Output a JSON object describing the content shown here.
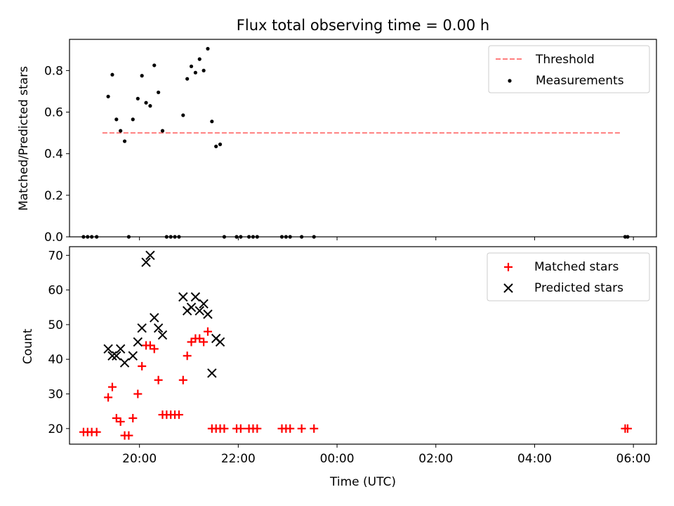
{
  "chart_data": [
    {
      "type": "scatter",
      "title": "Flux total observing time = 0.00 h",
      "xlabel": "",
      "ylabel": "Matched/Predicted stars",
      "x_unit": "time (UTC, hours; >24 means next day)",
      "xlim": [
        "18:35",
        "06:28"
      ],
      "ylim": [
        0,
        0.95
      ],
      "yticks": [
        "0.0",
        "0.2",
        "0.4",
        "0.6",
        "0.8"
      ],
      "legend_position": "top-right",
      "grid": false,
      "threshold": {
        "name": "Threshold",
        "value": 0.5,
        "x_range": [
          "19:15",
          "05:45"
        ],
        "color": "#ff7f7f"
      },
      "series": [
        {
          "name": "Measurements",
          "color": "#000000",
          "points": [
            [
              "18:52",
              0
            ],
            [
              "18:57",
              0
            ],
            [
              "19:02",
              0
            ],
            [
              "19:08",
              0
            ],
            [
              "19:22",
              0.675
            ],
            [
              "19:27",
              0.78
            ],
            [
              "19:32",
              0.565
            ],
            [
              "19:37",
              0.51
            ],
            [
              "19:42",
              0.46
            ],
            [
              "19:47",
              0
            ],
            [
              "19:52",
              0.565
            ],
            [
              "19:58",
              0.665
            ],
            [
              "20:03",
              0.775
            ],
            [
              "20:08",
              0.645
            ],
            [
              "20:13",
              0.63
            ],
            [
              "20:18",
              0.825
            ],
            [
              "20:23",
              0.695
            ],
            [
              "20:28",
              0.51
            ],
            [
              "20:33",
              0
            ],
            [
              "20:38",
              0
            ],
            [
              "20:43",
              0
            ],
            [
              "20:48",
              0
            ],
            [
              "20:53",
              0.585
            ],
            [
              "20:58",
              0.76
            ],
            [
              "21:03",
              0.82
            ],
            [
              "21:08",
              0.79
            ],
            [
              "21:13",
              0.855
            ],
            [
              "21:18",
              0.8
            ],
            [
              "21:23",
              0.905
            ],
            [
              "21:28",
              0.555
            ],
            [
              "21:33",
              0.435
            ],
            [
              "21:38",
              0.445
            ],
            [
              "21:43",
              0
            ],
            [
              "21:58",
              0
            ],
            [
              "22:03",
              0
            ],
            [
              "22:13",
              0
            ],
            [
              "22:18",
              0
            ],
            [
              "22:23",
              0
            ],
            [
              "22:53",
              0
            ],
            [
              "22:58",
              0
            ],
            [
              "23:03",
              0
            ],
            [
              "23:17",
              0
            ],
            [
              "23:32",
              0
            ],
            [
              "05:50",
              0
            ],
            [
              "05:53",
              0
            ]
          ]
        }
      ]
    },
    {
      "type": "scatter",
      "title": "",
      "xlabel": "Time (UTC)",
      "ylabel": "Count",
      "x_unit": "time (UTC, hours; >24 means next day)",
      "xlim": [
        "18:35",
        "06:28"
      ],
      "ylim": [
        15.5,
        72.5
      ],
      "yticks": [
        "20",
        "30",
        "40",
        "50",
        "60",
        "70"
      ],
      "xticks": [
        "20:00",
        "22:00",
        "00:00",
        "02:00",
        "04:00",
        "06:00"
      ],
      "legend_position": "top-right",
      "grid": false,
      "series": [
        {
          "name": "Matched stars",
          "color": "#ff0000",
          "marker": "+",
          "points": [
            [
              "18:52",
              19
            ],
            [
              "18:57",
              19
            ],
            [
              "19:02",
              19
            ],
            [
              "19:08",
              19
            ],
            [
              "19:22",
              29
            ],
            [
              "19:27",
              32
            ],
            [
              "19:32",
              23
            ],
            [
              "19:37",
              22
            ],
            [
              "19:42",
              18
            ],
            [
              "19:47",
              18
            ],
            [
              "19:52",
              23
            ],
            [
              "19:58",
              30
            ],
            [
              "20:03",
              38
            ],
            [
              "20:08",
              44
            ],
            [
              "20:13",
              44
            ],
            [
              "20:18",
              43
            ],
            [
              "20:23",
              34
            ],
            [
              "20:28",
              24
            ],
            [
              "20:33",
              24
            ],
            [
              "20:38",
              24
            ],
            [
              "20:43",
              24
            ],
            [
              "20:48",
              24
            ],
            [
              "20:53",
              34
            ],
            [
              "20:58",
              41
            ],
            [
              "21:03",
              45
            ],
            [
              "21:08",
              46
            ],
            [
              "21:13",
              46
            ],
            [
              "21:18",
              45
            ],
            [
              "21:23",
              48
            ],
            [
              "21:28",
              20
            ],
            [
              "21:33",
              20
            ],
            [
              "21:38",
              20
            ],
            [
              "21:43",
              20
            ],
            [
              "21:58",
              20
            ],
            [
              "22:03",
              20
            ],
            [
              "22:13",
              20
            ],
            [
              "22:18",
              20
            ],
            [
              "22:23",
              20
            ],
            [
              "22:53",
              20
            ],
            [
              "22:58",
              20
            ],
            [
              "23:03",
              20
            ],
            [
              "23:17",
              20
            ],
            [
              "23:32",
              20
            ],
            [
              "05:50",
              20
            ],
            [
              "05:53",
              20
            ]
          ]
        },
        {
          "name": "Predicted stars",
          "color": "#000000",
          "marker": "x",
          "points": [
            [
              "19:22",
              43
            ],
            [
              "19:27",
              41
            ],
            [
              "19:32",
              41
            ],
            [
              "19:37",
              43
            ],
            [
              "19:42",
              39
            ],
            [
              "19:52",
              41
            ],
            [
              "19:58",
              45
            ],
            [
              "20:03",
              49
            ],
            [
              "20:08",
              68
            ],
            [
              "20:13",
              70
            ],
            [
              "20:18",
              52
            ],
            [
              "20:23",
              49
            ],
            [
              "20:28",
              47
            ],
            [
              "20:53",
              58
            ],
            [
              "20:58",
              54
            ],
            [
              "21:03",
              55
            ],
            [
              "21:08",
              58
            ],
            [
              "21:13",
              54
            ],
            [
              "21:18",
              56
            ],
            [
              "21:23",
              53
            ],
            [
              "21:28",
              36
            ],
            [
              "21:33",
              46
            ],
            [
              "21:38",
              45
            ]
          ]
        }
      ]
    }
  ]
}
